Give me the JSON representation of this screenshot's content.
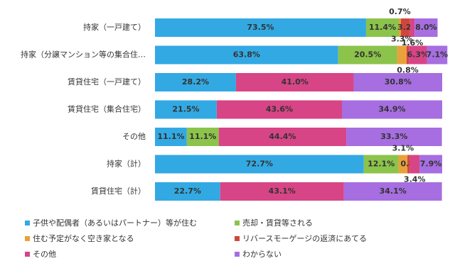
{
  "chart_data": {
    "type": "stacked-bar",
    "orientation": "horizontal",
    "xlim": [
      0,
      100
    ],
    "categories": [
      "持家（一戸建て）",
      "持家（分譲マンション等の集合住…",
      "賃貸住宅（一戸建て）",
      "賃貸住宅（集合住宅）",
      "その他",
      "持家（計）",
      "賃貸住宅（計）"
    ],
    "series": [
      {
        "name": "子供や配偶者（あるいはパートナー）等が住む",
        "color": "#33a9e3",
        "values": [
          73.5,
          63.8,
          28.2,
          21.5,
          11.1,
          72.7,
          22.7
        ],
        "value_labels": [
          "73.5%",
          "63.8%",
          "28.2%",
          "21.5%",
          "11.1%",
          "72.7%",
          "22.7%"
        ]
      },
      {
        "name": "売却・賃貸等される",
        "color": "#8cc34b",
        "values": [
          11.4,
          20.5,
          null,
          null,
          11.1,
          12.1,
          null
        ],
        "value_labels": [
          "11.4%",
          "20.5%",
          null,
          null,
          "11.1%",
          "12.1%",
          null
        ]
      },
      {
        "name": "住む予定がなく空き家となる",
        "color": "#e9a13b",
        "values": [
          0.7,
          3.3,
          null,
          null,
          null,
          3.1,
          null
        ],
        "value_labels": [
          "0.7%",
          "3.3%",
          null,
          null,
          null,
          "3.1%",
          null
        ]
      },
      {
        "name": "リバースモーゲージの返済にあてる",
        "color": "#d0463e",
        "values": [
          3.2,
          0.8,
          null,
          null,
          null,
          0.8,
          null
        ],
        "value_labels": [
          "3.2%",
          "0.8%",
          null,
          null,
          null,
          "0.8%",
          null
        ]
      },
      {
        "name": "その他",
        "color": "#d74586",
        "values": [
          1.6,
          6.3,
          41.0,
          43.6,
          44.4,
          3.4,
          43.1
        ],
        "value_labels": [
          "1.6%",
          "6.3%",
          "41.0%",
          "43.6%",
          "44.4%",
          "3.4%",
          "43.1%"
        ]
      },
      {
        "name": "わからない",
        "color": "#a66ee0",
        "values": [
          8.0,
          7.1,
          30.8,
          34.9,
          33.3,
          7.9,
          34.1
        ],
        "value_labels": [
          "8.0%",
          "7.1%",
          "30.8%",
          "34.9%",
          "33.3%",
          "7.9%",
          "34.1%"
        ]
      }
    ]
  }
}
